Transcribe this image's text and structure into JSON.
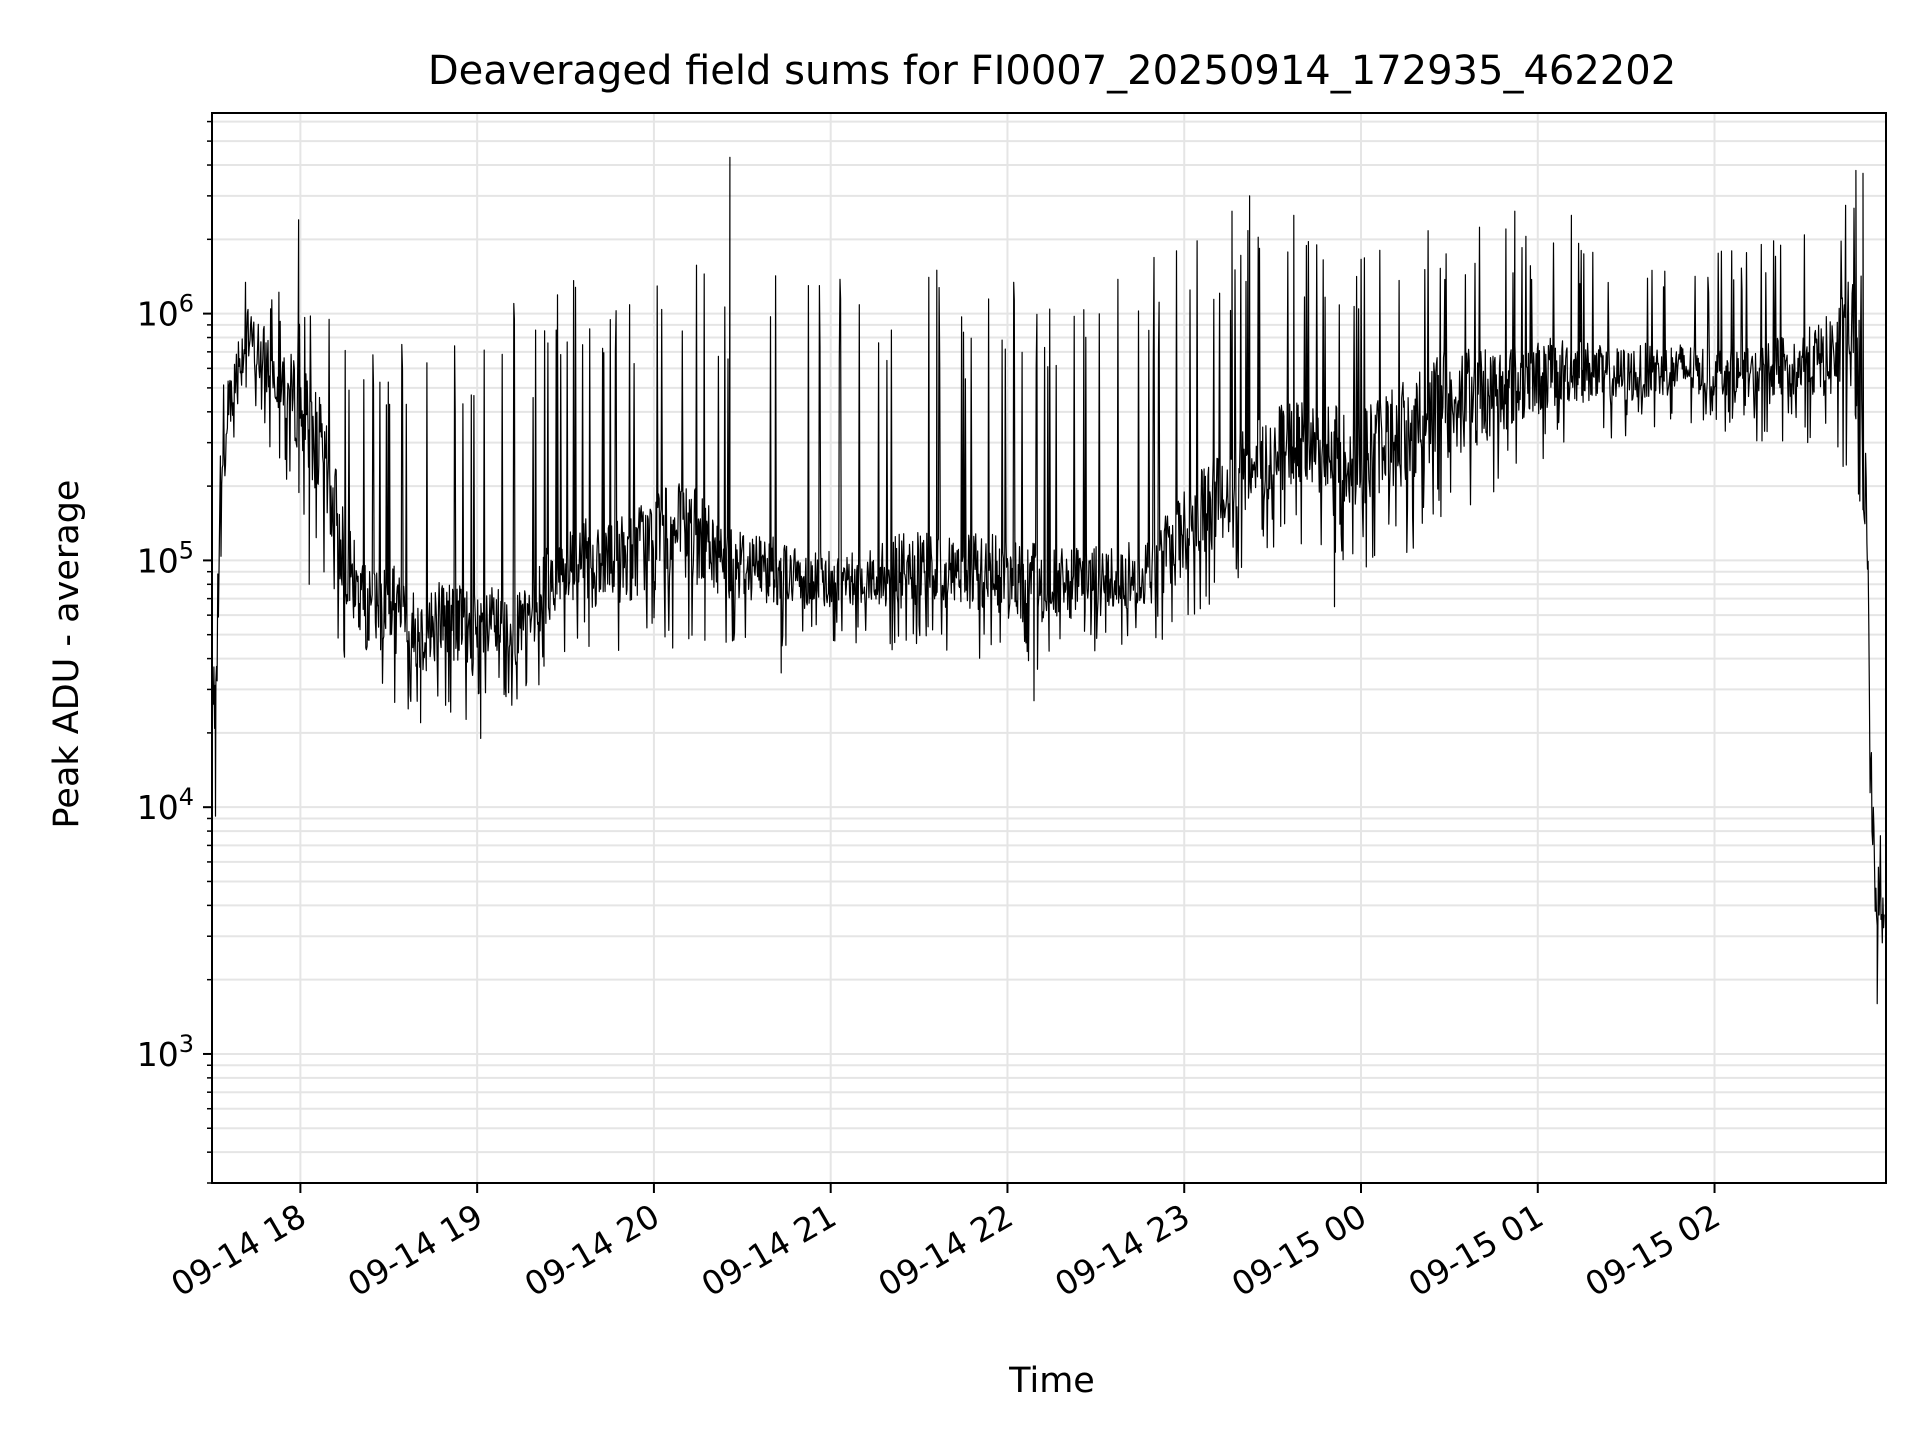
{
  "chart_data": {
    "type": "line",
    "title": "Deaveraged field sums for FI0007_20250914_172935_462202",
    "xlabel": "Time",
    "ylabel": "Peak ADU - average",
    "yscale": "log",
    "ylim": [
      300,
      6500000
    ],
    "xlim_hours": [
      17.5,
      26.97
    ],
    "grid": true,
    "line_color": "#000000",
    "grid_color": "#e5e5e5",
    "x_ticks": [
      {
        "hour": 18,
        "label": "09-14 18"
      },
      {
        "hour": 19,
        "label": "09-14 19"
      },
      {
        "hour": 20,
        "label": "09-14 20"
      },
      {
        "hour": 21,
        "label": "09-14 21"
      },
      {
        "hour": 22,
        "label": "09-14 22"
      },
      {
        "hour": 23,
        "label": "09-14 23"
      },
      {
        "hour": 24,
        "label": "09-15 00"
      },
      {
        "hour": 25,
        "label": "09-15 01"
      },
      {
        "hour": 26,
        "label": "09-15 02"
      }
    ],
    "y_ticks": [
      {
        "value": 1000,
        "base": "10",
        "exp": "3"
      },
      {
        "value": 10000,
        "base": "10",
        "exp": "4"
      },
      {
        "value": 100000,
        "base": "10",
        "exp": "5"
      },
      {
        "value": 1000000,
        "base": "10",
        "exp": "6"
      }
    ],
    "series": [
      {
        "name": "deaveraged field sums",
        "hours": [
          17.5,
          17.52,
          17.55,
          17.6,
          17.7,
          17.8,
          17.9,
          18.0,
          18.1,
          18.2,
          18.3,
          18.4,
          18.5,
          18.6,
          18.7,
          18.8,
          18.9,
          19.0,
          19.1,
          19.2,
          19.3,
          19.4,
          19.5,
          19.6,
          19.7,
          19.8,
          19.9,
          20.0,
          20.2,
          20.4,
          20.6,
          20.8,
          21.0,
          21.2,
          21.4,
          21.6,
          21.8,
          22.0,
          22.2,
          22.4,
          22.6,
          22.8,
          23.0,
          23.2,
          23.4,
          23.6,
          23.8,
          24.0,
          24.2,
          24.4,
          24.6,
          24.8,
          25.0,
          25.2,
          25.4,
          25.6,
          25.8,
          26.0,
          26.2,
          26.4,
          26.6,
          26.7,
          26.78,
          26.82,
          26.86,
          26.9,
          26.93,
          26.96
        ],
        "median": [
          20000,
          40000,
          150000,
          500000,
          800000,
          650000,
          550000,
          400000,
          300000,
          150000,
          80000,
          60000,
          70000,
          55000,
          50000,
          60000,
          55000,
          50000,
          55000,
          50000,
          60000,
          80000,
          90000,
          100000,
          90000,
          100000,
          110000,
          120000,
          130000,
          100000,
          95000,
          85000,
          85000,
          85000,
          90000,
          90000,
          90000,
          85000,
          80000,
          80000,
          85000,
          90000,
          130000,
          180000,
          250000,
          300000,
          280000,
          260000,
          320000,
          400000,
          450000,
          500000,
          550000,
          600000,
          550000,
          580000,
          600000,
          580000,
          550000,
          600000,
          650000,
          700000,
          800000,
          500000,
          150000,
          5000,
          4000,
          3500
        ],
        "low": [
          10000,
          18000,
          60000,
          200000,
          400000,
          300000,
          200000,
          150000,
          100000,
          50000,
          30000,
          25000,
          25000,
          25000,
          22000,
          25000,
          22000,
          20000,
          25000,
          25000,
          28000,
          35000,
          40000,
          40000,
          40000,
          40000,
          40000,
          40000,
          45000,
          45000,
          45000,
          45000,
          45000,
          45000,
          40000,
          40000,
          40000,
          35000,
          35000,
          38000,
          40000,
          45000,
          50000,
          70000,
          100000,
          120000,
          110000,
          90000,
          100000,
          120000,
          150000,
          200000,
          250000,
          300000,
          300000,
          320000,
          350000,
          350000,
          300000,
          300000,
          300000,
          250000,
          200000,
          100000,
          50000,
          1600,
          1700,
          2000
        ],
        "high": [
          35000,
          80000,
          400000,
          1300000,
          1500000,
          1300000,
          1200000,
          1000000,
          1100000,
          900000,
          600000,
          700000,
          800000,
          900000,
          1000000,
          1100000,
          1000000,
          1100000,
          1200000,
          1100000,
          1300000,
          1400000,
          1500000,
          1500000,
          1400000,
          1500000,
          1500000,
          1500000,
          1600000,
          1600000,
          1600000,
          1600000,
          1600000,
          1500000,
          1500000,
          1500000,
          1400000,
          1400000,
          1500000,
          1500000,
          1500000,
          1700000,
          2000000,
          2200000,
          2300000,
          2000000,
          2000000,
          2100000,
          2200000,
          2300000,
          2400000,
          2300000,
          2200000,
          2000000,
          1800000,
          1800000,
          1800000,
          1800000,
          1900000,
          2200000,
          2600000,
          3200000,
          3600000,
          2500000,
          600000,
          9000,
          10000,
          11000
        ],
        "spikes": [
          {
            "hour": 17.52,
            "value": 9200
          },
          {
            "hour": 17.99,
            "value": 2400000
          },
          {
            "hour": 18.05,
            "value": 80000
          },
          {
            "hour": 18.68,
            "value": 22000
          },
          {
            "hour": 19.02,
            "value": 19000
          },
          {
            "hour": 20.43,
            "value": 4300000
          },
          {
            "hour": 20.72,
            "value": 35000
          },
          {
            "hour": 21.6,
            "value": 1500000
          },
          {
            "hour": 22.15,
            "value": 27000
          },
          {
            "hour": 23.27,
            "value": 2600000
          },
          {
            "hour": 23.37,
            "value": 3000000
          },
          {
            "hour": 23.62,
            "value": 2500000
          },
          {
            "hour": 23.85,
            "value": 65000
          },
          {
            "hour": 24.87,
            "value": 2600000
          },
          {
            "hour": 25.19,
            "value": 2500000
          },
          {
            "hour": 26.8,
            "value": 3800000
          },
          {
            "hour": 26.84,
            "value": 3700000
          },
          {
            "hour": 26.92,
            "value": 1600
          }
        ]
      }
    ]
  }
}
